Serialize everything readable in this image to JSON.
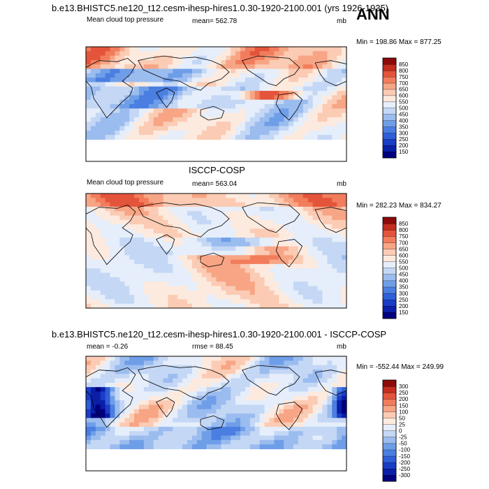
{
  "season": "ANN",
  "chart_data": [
    {
      "type": "heatmap",
      "title": "b.e13.BHISTC5.ne120_t12.cesm-ihesp-hires1.0.30-1920-2100.001 (yrs 1926-1935)",
      "left_label": "Mean cloud top pressure",
      "center_label": "mean= 562.78",
      "units": "mb",
      "minmax": "Min = 198.86 Max = 877.25",
      "colorbar": {
        "levels": [
          "150",
          "200",
          "250",
          "300",
          "350",
          "400",
          "450",
          "500",
          "550",
          "600",
          "650",
          "700",
          "750",
          "800",
          "850"
        ],
        "colors": [
          "#00007f",
          "#0a1ea8",
          "#1a3dc6",
          "#2f5fd8",
          "#4a7ee0",
          "#6f9ee8",
          "#9bbcef",
          "#c4d7f5",
          "#e5eefa",
          "#fdeadf",
          "#fbcbb4",
          "#f7a585",
          "#f27d5c",
          "#e4543a",
          "#c42d1f",
          "#8c0a0a"
        ]
      }
    },
    {
      "type": "heatmap",
      "title": "ISCCP-COSP",
      "left_label": "Mean cloud top pressure",
      "center_label": "mean= 563.04",
      "units": "mb",
      "minmax": "Min = 282.23 Max = 834.27",
      "colorbar": {
        "levels": [
          "150",
          "200",
          "250",
          "300",
          "350",
          "400",
          "450",
          "500",
          "550",
          "600",
          "650",
          "700",
          "750",
          "800",
          "850"
        ],
        "colors": [
          "#00007f",
          "#0a1ea8",
          "#1a3dc6",
          "#2f5fd8",
          "#4a7ee0",
          "#6f9ee8",
          "#9bbcef",
          "#c4d7f5",
          "#e5eefa",
          "#fdeadf",
          "#fbcbb4",
          "#f7a585",
          "#f27d5c",
          "#e4543a",
          "#c42d1f",
          "#8c0a0a"
        ]
      }
    },
    {
      "type": "heatmap",
      "title": "b.e13.BHISTC5.ne120_t12.cesm-ihesp-hires1.0.30-1920-2100.001 - ISCCP-COSP",
      "left_label": "mean =  -0.26",
      "center_label": "rmse =  88.45",
      "units": "mb",
      "minmax": "Min = -552.44 Max = 249.99",
      "colorbar": {
        "levels": [
          "-300",
          "-250",
          "-200",
          "-150",
          "-100",
          "-50",
          "-25",
          "0",
          "25",
          "50",
          "100",
          "150",
          "200",
          "250",
          "300"
        ],
        "colors": [
          "#00007f",
          "#0a1ea8",
          "#1a3dc6",
          "#2f5fd8",
          "#4a7ee0",
          "#6f9ee8",
          "#9bbcef",
          "#c4d7f5",
          "#e5eefa",
          "#fdeadf",
          "#fbcbb4",
          "#f7a585",
          "#f27d5c",
          "#e4543a",
          "#c42d1f",
          "#8c0a0a"
        ]
      }
    }
  ]
}
